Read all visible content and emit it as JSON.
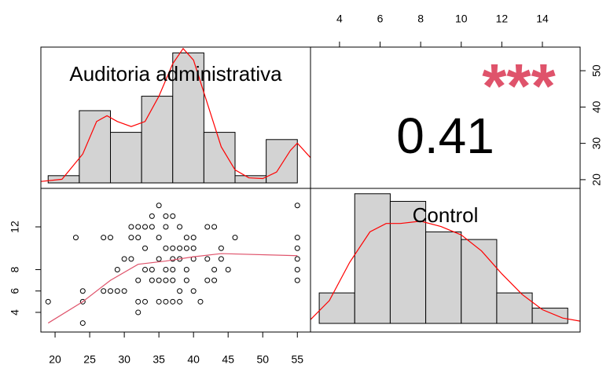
{
  "chart_data": [
    {
      "type": "histogram",
      "label": "Auditoria administrativa",
      "bins": [
        19,
        23.5,
        28,
        32.5,
        37,
        41.5,
        46,
        50.5,
        55
      ],
      "counts": [
        1,
        10,
        7,
        12,
        18,
        7,
        1,
        6
      ],
      "color": "#d3d3d3",
      "xlim": [
        17.95,
        56.9
      ],
      "ylim": [
        -0.76,
        18.8
      ],
      "density": {
        "color": "#ff0000",
        "x": [
          17.95,
          21,
          24,
          26,
          27.5,
          29,
          31,
          33,
          35,
          37,
          38.5,
          40,
          42,
          44,
          46,
          48,
          50,
          52,
          54,
          55,
          56.9
        ],
        "values": [
          0.2,
          0.5,
          4,
          8.5,
          9.3,
          8.5,
          7.8,
          8.5,
          12,
          16.5,
          18.6,
          17,
          11,
          5,
          1.8,
          0.7,
          0.6,
          1.5,
          4.5,
          5.5,
          3.5
        ]
      }
    },
    {
      "type": "correlation",
      "value": 0.41,
      "significance": "***",
      "color": "#df536b",
      "xlim": [
        2.57,
        15.86
      ],
      "xticks": [
        4,
        6,
        8,
        10,
        12,
        14
      ],
      "ylim": [
        17.6,
        56.5
      ],
      "yticks": [
        20,
        30,
        40,
        50
      ]
    },
    {
      "type": "scatter",
      "x": [
        35,
        55,
        34,
        36,
        37,
        31,
        32,
        33,
        34,
        36,
        38,
        42,
        43,
        23,
        27,
        28,
        31,
        32,
        35,
        39,
        40,
        46,
        55,
        33,
        36,
        37,
        38,
        39,
        40,
        44,
        55,
        30,
        31,
        35,
        37,
        38,
        40,
        42,
        44,
        55,
        29,
        33,
        34,
        36,
        37,
        39,
        43,
        45,
        55,
        32,
        34,
        35,
        36,
        37,
        39,
        42,
        43,
        55,
        24,
        27,
        28,
        29,
        30,
        38,
        40,
        19,
        24,
        32,
        33,
        35,
        36,
        37,
        38,
        41,
        32,
        24
      ],
      "y": [
        14,
        14,
        13,
        13,
        13,
        12,
        12,
        12,
        12,
        12,
        12,
        12,
        12,
        11,
        11,
        11,
        11,
        11,
        11,
        11,
        11,
        11,
        11,
        10,
        10,
        10,
        10,
        10,
        10,
        10,
        10,
        9,
        9,
        9,
        9,
        9,
        9,
        9,
        9,
        9,
        8,
        8,
        8,
        8,
        8,
        8,
        8,
        8,
        8,
        7,
        7,
        7,
        7,
        7,
        7,
        7,
        7,
        7,
        6,
        6,
        6,
        6,
        6,
        6,
        6,
        5,
        5,
        5,
        5,
        5,
        5,
        5,
        5,
        5,
        4,
        3
      ],
      "xlim": [
        17.95,
        56.9
      ],
      "xticks": [
        20,
        25,
        30,
        35,
        40,
        45,
        50,
        55
      ],
      "ylim": [
        2.16,
        15.6
      ],
      "yticks": [
        4,
        6,
        8,
        12
      ],
      "trend": {
        "color": "#df536b",
        "x": [
          19,
          24,
          28,
          32,
          36,
          40,
          44,
          55
        ],
        "values": [
          3,
          5,
          7,
          8.5,
          8.8,
          9.2,
          9.5,
          9.3
        ]
      }
    },
    {
      "type": "histogram",
      "label": "Control",
      "bins": [
        3,
        4.75,
        6.5,
        8.25,
        10,
        11.75,
        13.5,
        15.25
      ],
      "counts": [
        4,
        17,
        16,
        12,
        11,
        4,
        2
      ],
      "color": "#d3d3d3",
      "xlim": [
        2.57,
        15.86
      ],
      "ylim": [
        -1.13,
        17.7
      ],
      "density": {
        "color": "#ff0000",
        "x": [
          2.57,
          3.5,
          4.5,
          5.5,
          6.3,
          7,
          8,
          9,
          10,
          11,
          12,
          13,
          14,
          15,
          15.86
        ],
        "values": [
          0.5,
          3,
          8,
          12,
          13.1,
          13.1,
          13.4,
          12.7,
          11.6,
          9.5,
          6.5,
          3.8,
          1.8,
          0.7,
          0.3
        ]
      }
    }
  ]
}
